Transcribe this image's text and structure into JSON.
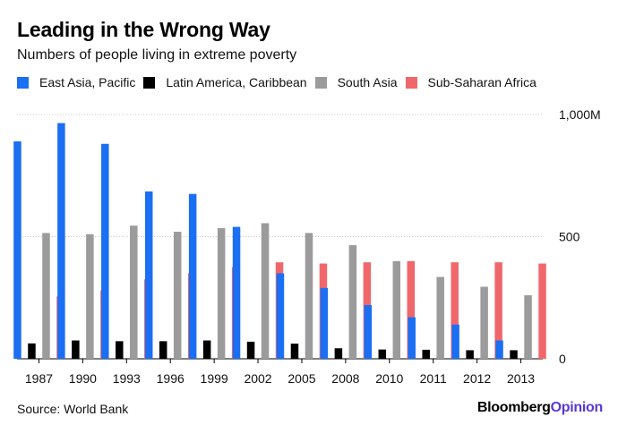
{
  "title": "Leading in the Wrong Way",
  "subtitle": "Numbers of people living in extreme poverty",
  "source": "Source: World Bank",
  "brand": {
    "part1": "Bloomberg",
    "part2": "Opinion"
  },
  "colors": {
    "east_asia": "#1a6ff3",
    "latin_america": "#000000",
    "south_asia": "#9b9b9b",
    "ssa": "#f0676b",
    "brand_accent": "#5a37d6"
  },
  "chart_data": {
    "type": "bar",
    "title": "Leading in the Wrong Way",
    "subtitle": "Numbers of people living in extreme poverty",
    "categories": [
      "1987",
      "1990",
      "1993",
      "1996",
      "1999",
      "2002",
      "2005",
      "2008",
      "2010",
      "2011",
      "2012",
      "2013"
    ],
    "series": [
      {
        "name": "East Asia, Pacific",
        "color": "#1a6ff3",
        "values": [
          890,
          965,
          880,
          685,
          675,
          540,
          350,
          290,
          220,
          170,
          140,
          75
        ]
      },
      {
        "name": "Latin America, Caribbean",
        "color": "#000000",
        "values": [
          63,
          75,
          72,
          72,
          75,
          70,
          62,
          43,
          38,
          37,
          35,
          35
        ]
      },
      {
        "name": "South Asia",
        "color": "#9b9b9b",
        "values": [
          515,
          510,
          545,
          520,
          535,
          555,
          515,
          465,
          400,
          335,
          295,
          260
        ]
      },
      {
        "name": "Sub-Saharan Africa",
        "color": "#f0676b",
        "values": [
          255,
          280,
          325,
          350,
          375,
          395,
          390,
          395,
          400,
          395,
          395,
          390
        ]
      }
    ],
    "yticks": [
      {
        "value": 0,
        "label": "0"
      },
      {
        "value": 500,
        "label": "500"
      },
      {
        "value": 1000,
        "label": "1,000M"
      }
    ],
    "ylim": [
      0,
      1000
    ],
    "xlabel": "",
    "ylabel": "",
    "grid": true,
    "legend": "top"
  }
}
